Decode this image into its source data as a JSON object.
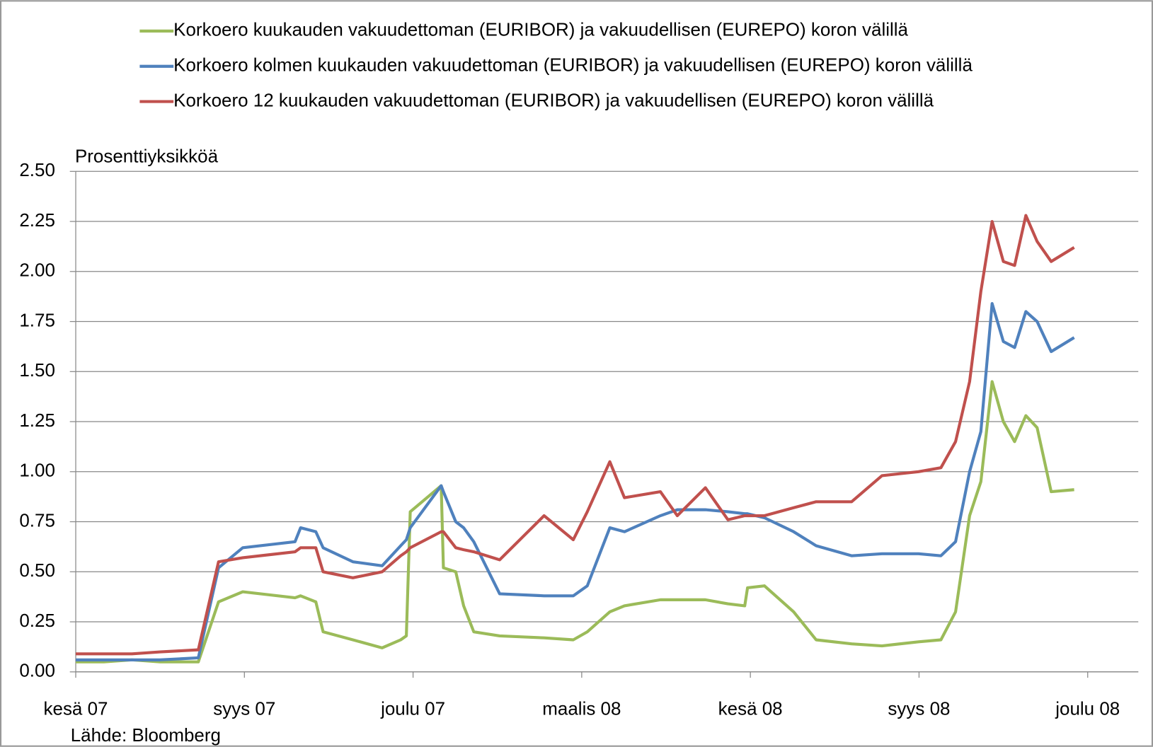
{
  "chart_data": {
    "type": "line",
    "y_label": "Prosenttiyksikköä",
    "source": "Lähde: Bloomberg",
    "legend": "top",
    "grid": true,
    "x": [
      0,
      0.5,
      1,
      1.5,
      2.18,
      2.54,
      2.97,
      3.9,
      4.0,
      4.27,
      4.4,
      4.93,
      5.45,
      5.78,
      5.88,
      5.95,
      6.5,
      6.54,
      6.76,
      6.9,
      7.08,
      7.54,
      8.33,
      8.85,
      9.1,
      9.5,
      9.76,
      10.4,
      10.7,
      11.2,
      11.6,
      11.9,
      11.95,
      12.25,
      12.77,
      13.17,
      13.8,
      14.34,
      14.99,
      15.39,
      15.65,
      15.9,
      16.1,
      16.3,
      16.5,
      16.7,
      16.9,
      17.1,
      17.35,
      17.76
    ],
    "xlim": [
      0,
      18.9
    ],
    "xticks": [
      {
        "value": 0,
        "label": "kesä 07"
      },
      {
        "value": 3,
        "label": "syys 07"
      },
      {
        "value": 6,
        "label": "joulu 07"
      },
      {
        "value": 9,
        "label": "maalis 08"
      },
      {
        "value": 12,
        "label": "kesä 08"
      },
      {
        "value": 15,
        "label": "syys 08"
      },
      {
        "value": 18,
        "label": "joulu 08"
      }
    ],
    "ylim": [
      0,
      2.5
    ],
    "yticks": [
      {
        "value": 0,
        "label": "0.00"
      },
      {
        "value": 0.25,
        "label": "0.25"
      },
      {
        "value": 0.5,
        "label": "0.50"
      },
      {
        "value": 0.75,
        "label": "0.75"
      },
      {
        "value": 1,
        "label": "1.00"
      },
      {
        "value": 1.25,
        "label": "1.25"
      },
      {
        "value": 1.5,
        "label": "1.50"
      },
      {
        "value": 1.75,
        "label": "1.75"
      },
      {
        "value": 2,
        "label": "2.00"
      },
      {
        "value": 2.25,
        "label": "2.25"
      },
      {
        "value": 2.5,
        "label": "2.50"
      }
    ],
    "series": [
      {
        "name": "Korkoero kuukauden vakuudettoman (EURIBOR) ja vakuudellisen (EUREPO) koron välillä",
        "color": "#9bbb59",
        "values": [
          0.05,
          0.05,
          0.06,
          0.05,
          0.05,
          0.35,
          0.4,
          0.37,
          0.38,
          0.35,
          0.2,
          0.16,
          0.12,
          0.16,
          0.18,
          0.8,
          0.93,
          0.52,
          0.5,
          0.33,
          0.2,
          0.18,
          0.17,
          0.16,
          0.2,
          0.3,
          0.33,
          0.36,
          0.36,
          0.36,
          0.34,
          0.33,
          0.42,
          0.43,
          0.3,
          0.16,
          0.14,
          0.13,
          0.15,
          0.16,
          0.3,
          0.78,
          0.95,
          1.45,
          1.25,
          1.15,
          1.28,
          1.22,
          0.9,
          0.91
        ]
      },
      {
        "name": "Korkoero kolmen kuukauden vakuudettoman (EURIBOR) ja vakuudellisen (EUREPO) koron välillä",
        "color": "#4f81bd",
        "values": [
          0.06,
          0.06,
          0.06,
          0.06,
          0.07,
          0.52,
          0.62,
          0.65,
          0.72,
          0.7,
          0.62,
          0.55,
          0.53,
          0.63,
          0.66,
          0.72,
          0.93,
          0.9,
          0.75,
          0.72,
          0.65,
          0.39,
          0.38,
          0.38,
          0.43,
          0.72,
          0.7,
          0.78,
          0.81,
          0.81,
          0.8,
          0.79,
          0.79,
          0.77,
          0.7,
          0.63,
          0.58,
          0.59,
          0.59,
          0.58,
          0.65,
          1.0,
          1.2,
          1.84,
          1.65,
          1.62,
          1.8,
          1.75,
          1.6,
          1.67
        ]
      },
      {
        "name": "Korkoero 12 kuukauden vakuudettoman (EURIBOR) ja vakuudellisen (EUREPO) koron välillä",
        "color": "#c0504d",
        "values": [
          0.09,
          0.09,
          0.09,
          0.1,
          0.11,
          0.55,
          0.57,
          0.6,
          0.62,
          0.62,
          0.5,
          0.47,
          0.5,
          0.58,
          0.6,
          0.62,
          0.7,
          0.7,
          0.62,
          0.61,
          0.6,
          0.56,
          0.78,
          0.66,
          0.8,
          1.05,
          0.87,
          0.9,
          0.78,
          0.92,
          0.76,
          0.78,
          0.78,
          0.78,
          0.82,
          0.85,
          0.85,
          0.98,
          1.0,
          1.02,
          1.15,
          1.45,
          1.9,
          2.25,
          2.05,
          2.03,
          2.28,
          2.15,
          2.05,
          2.12
        ]
      }
    ]
  }
}
